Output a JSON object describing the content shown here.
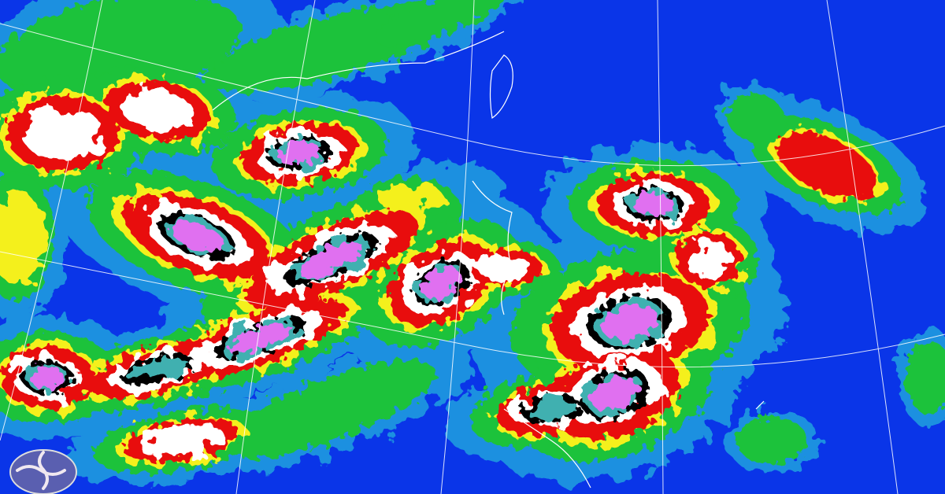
{
  "image": {
    "type": "enhanced infrared satellite imagery",
    "logo": "weather-bureau-logo",
    "colors": {
      "clear_sky": "#0a35e8",
      "light_cloud": "#1e90e0",
      "low_cloud": "#1fc23a",
      "mid_cloud": "#f4f01a",
      "high_cloud": "#e81010",
      "very_high": "#ffffff",
      "top_black": "#000000",
      "top_cyan": "#40b0b0",
      "coldest": "#e070f0",
      "grid": "#ffffff"
    }
  }
}
